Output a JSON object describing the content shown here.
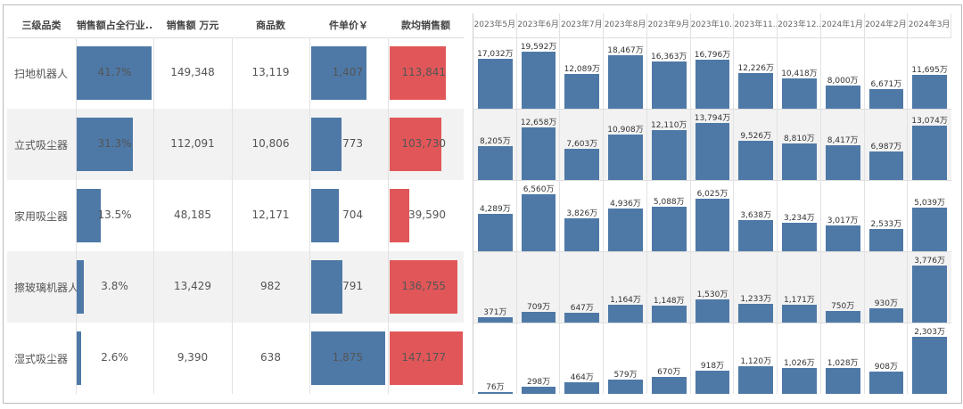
{
  "chart_data": {
    "type": "table",
    "headers": [
      "三级品类",
      "销售额占全行业..",
      "销售额 万元",
      "商品数",
      "件单价￥",
      "款均销售额"
    ],
    "rows": [
      {
        "category": "扫地机器人",
        "share": "41.7%",
        "share_value": 41.7,
        "sales": "149,348",
        "count": "13,119",
        "price": "1,407",
        "price_value": 1407,
        "avg": "113,841",
        "avg_value": 113841
      },
      {
        "category": "立式吸尘器",
        "share": "31.3%",
        "share_value": 31.3,
        "sales": "112,091",
        "count": "10,806",
        "price": "773",
        "price_value": 773,
        "avg": "103,730",
        "avg_value": 103730
      },
      {
        "category": "家用吸尘器",
        "share": "13.5%",
        "share_value": 13.5,
        "sales": "48,185",
        "count": "12,171",
        "price": "704",
        "price_value": 704,
        "avg": "39,590",
        "avg_value": 39590
      },
      {
        "category": "擦玻璃机器人",
        "share": "3.8%",
        "share_value": 3.8,
        "sales": "13,429",
        "count": "982",
        "price": "791",
        "price_value": 791,
        "avg": "136,755",
        "avg_value": 136755
      },
      {
        "category": "湿式吸尘器",
        "share": "2.6%",
        "share_value": 2.6,
        "sales": "9,390",
        "count": "638",
        "price": "1,875",
        "price_value": 1875,
        "avg": "147,177",
        "avg_value": 147177
      }
    ],
    "months": [
      "2023年5月",
      "2023年6月",
      "2023年7月",
      "2023年8月",
      "2023年9月",
      "2023年10...",
      "2023年11...",
      "2023年12...",
      "2024年1月",
      "2024年2月",
      "2024年3月"
    ],
    "monthly": [
      [
        17032,
        19592,
        12089,
        18467,
        16363,
        16796,
        12226,
        10418,
        8000,
        6671,
        11695
      ],
      [
        8205,
        12658,
        7603,
        10908,
        12110,
        13794,
        9526,
        8810,
        8417,
        6987,
        13074
      ],
      [
        4289,
        6560,
        3826,
        4936,
        5088,
        6025,
        3638,
        3234,
        3017,
        2533,
        5039
      ],
      [
        371,
        709,
        647,
        1164,
        1148,
        1530,
        1233,
        1171,
        750,
        930,
        3776
      ],
      [
        76,
        298,
        464,
        579,
        670,
        918,
        1120,
        1026,
        1028,
        908,
        2303
      ]
    ],
    "unit": "万",
    "colors": {
      "blue": "#4e79a7",
      "red": "#e15759"
    }
  }
}
